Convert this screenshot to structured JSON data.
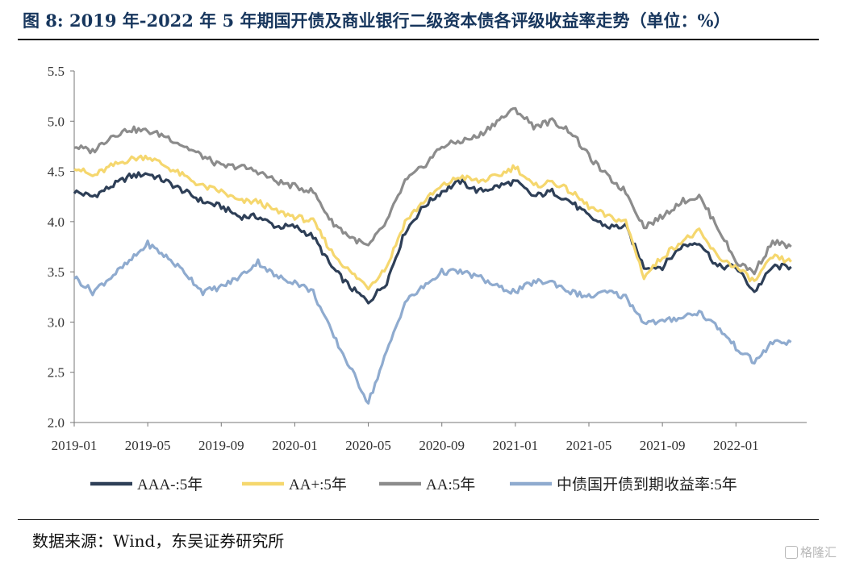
{
  "title": "图 8: 2019 年-2022 年 5 年期国开债及商业银行二级资本债各评级收益率走势（单位：%）",
  "source": "数据来源：Wind，东吴证券研究所",
  "watermark": "格隆汇",
  "chart_data": {
    "type": "line",
    "title": "",
    "xlabel": "",
    "ylabel": "",
    "ylim": [
      2.0,
      5.5
    ],
    "yticks": [
      "2.0",
      "2.5",
      "3.0",
      "3.5",
      "4.0",
      "4.5",
      "5.0",
      "5.5"
    ],
    "x_tick_labels": [
      "2019-01",
      "2019-05",
      "2019-09",
      "2020-01",
      "2020-05",
      "2020-09",
      "2021-01",
      "2021-05",
      "2021-09",
      "2022-01"
    ],
    "legend_position": "bottom",
    "grid": false,
    "x": [
      "2019-01",
      "2019-02",
      "2019-03",
      "2019-04",
      "2019-05",
      "2019-06",
      "2019-07",
      "2019-08",
      "2019-09",
      "2019-10",
      "2019-11",
      "2019-12",
      "2020-01",
      "2020-02",
      "2020-03",
      "2020-04",
      "2020-05",
      "2020-06",
      "2020-07",
      "2020-08",
      "2020-09",
      "2020-10",
      "2020-11",
      "2020-12",
      "2021-01",
      "2021-02",
      "2021-03",
      "2021-04",
      "2021-05",
      "2021-06",
      "2021-07",
      "2021-08",
      "2021-09",
      "2021-10",
      "2021-11",
      "2021-12",
      "2022-01",
      "2022-02",
      "2022-03",
      "2022-04"
    ],
    "series": [
      {
        "name": "AAA-:5年",
        "color": "#2e3f57",
        "values": [
          4.3,
          4.25,
          4.35,
          4.45,
          4.48,
          4.4,
          4.3,
          4.2,
          4.15,
          4.05,
          4.05,
          3.95,
          3.95,
          3.85,
          3.55,
          3.35,
          3.2,
          3.4,
          3.9,
          4.15,
          4.3,
          4.4,
          4.3,
          4.35,
          4.4,
          4.25,
          4.3,
          4.2,
          4.05,
          3.95,
          3.95,
          3.55,
          3.55,
          3.75,
          3.8,
          3.55,
          3.55,
          3.3,
          3.55,
          3.55
        ]
      },
      {
        "name": "AA+:5年",
        "color": "#f5d76e",
        "values": [
          4.55,
          4.45,
          4.55,
          4.62,
          4.65,
          4.55,
          4.45,
          4.35,
          4.3,
          4.2,
          4.2,
          4.1,
          4.05,
          4.0,
          3.7,
          3.5,
          3.35,
          3.55,
          4.0,
          4.2,
          4.35,
          4.45,
          4.4,
          4.45,
          4.55,
          4.35,
          4.4,
          4.3,
          4.15,
          4.05,
          4.0,
          3.45,
          3.65,
          3.8,
          3.9,
          3.65,
          3.55,
          3.4,
          3.65,
          3.6
        ]
      },
      {
        "name": "AA:5年",
        "color": "#8c8c8c",
        "values": [
          4.75,
          4.7,
          4.85,
          4.92,
          4.9,
          4.85,
          4.75,
          4.65,
          4.55,
          4.55,
          4.5,
          4.4,
          4.35,
          4.3,
          4.0,
          3.85,
          3.75,
          4.0,
          4.4,
          4.55,
          4.75,
          4.8,
          4.85,
          5.0,
          5.12,
          4.95,
          5.0,
          4.9,
          4.65,
          4.45,
          4.3,
          3.95,
          4.05,
          4.2,
          4.25,
          3.95,
          3.6,
          3.5,
          3.8,
          3.75
        ]
      },
      {
        "name": "中债国开债到期收益率:5年",
        "color": "#8fabcf",
        "values": [
          3.45,
          3.3,
          3.45,
          3.6,
          3.78,
          3.65,
          3.5,
          3.3,
          3.35,
          3.45,
          3.6,
          3.45,
          3.4,
          3.3,
          2.9,
          2.55,
          2.2,
          2.7,
          3.2,
          3.35,
          3.5,
          3.5,
          3.45,
          3.35,
          3.3,
          3.4,
          3.4,
          3.3,
          3.25,
          3.3,
          3.25,
          3.0,
          3.0,
          3.05,
          3.1,
          2.95,
          2.75,
          2.6,
          2.8,
          2.8
        ]
      }
    ]
  }
}
